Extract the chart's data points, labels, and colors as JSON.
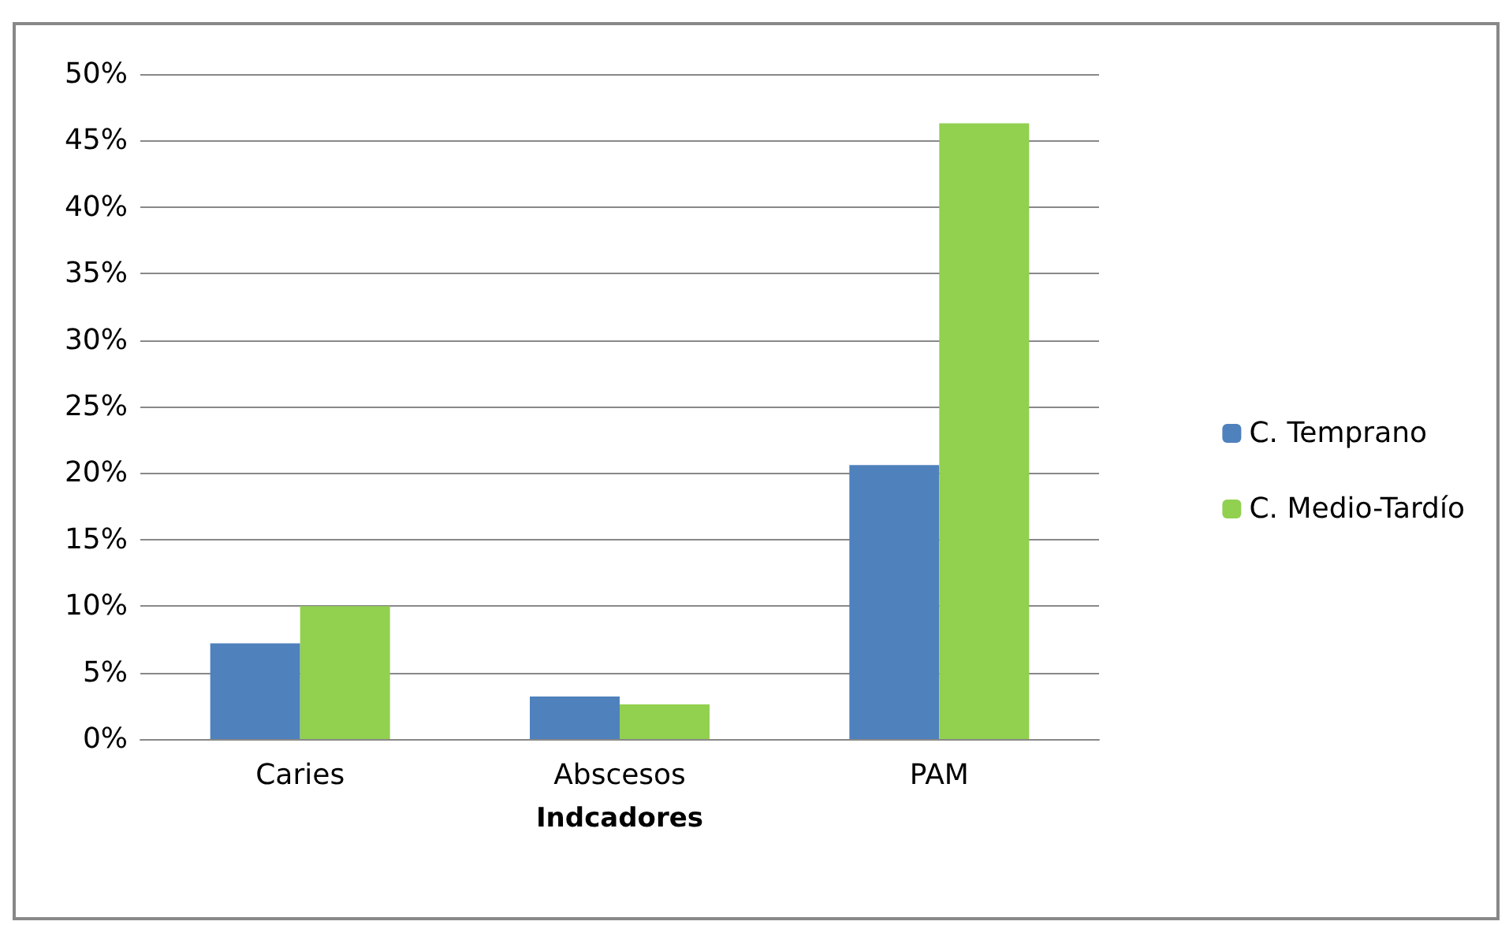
{
  "chart_data": {
    "type": "bar",
    "xlabel": "Indcadores",
    "categories": [
      "Caries",
      "Abscesos",
      "PAM"
    ],
    "series": [
      {
        "name": "C. Temprano",
        "color": "#4f81bd",
        "values": [
          7.2,
          3.2,
          20.6
        ]
      },
      {
        "name": "C. Medio-Tardío",
        "color": "#92d050",
        "values": [
          10,
          2.6,
          46.3
        ]
      }
    ],
    "ylim": [
      0,
      50
    ],
    "yticks": [
      {
        "value": 0,
        "label": "0%"
      },
      {
        "value": 5,
        "label": "5%"
      },
      {
        "value": 10,
        "label": "10%"
      },
      {
        "value": 15,
        "label": "15%"
      },
      {
        "value": 20,
        "label": "20%"
      },
      {
        "value": 25,
        "label": "25%"
      },
      {
        "value": 30,
        "label": "30%"
      },
      {
        "value": 35,
        "label": "35%"
      },
      {
        "value": 40,
        "label": "40%"
      },
      {
        "value": 45,
        "label": "45%"
      },
      {
        "value": 50,
        "label": "50%"
      }
    ],
    "grid": "y",
    "legend": "right"
  }
}
